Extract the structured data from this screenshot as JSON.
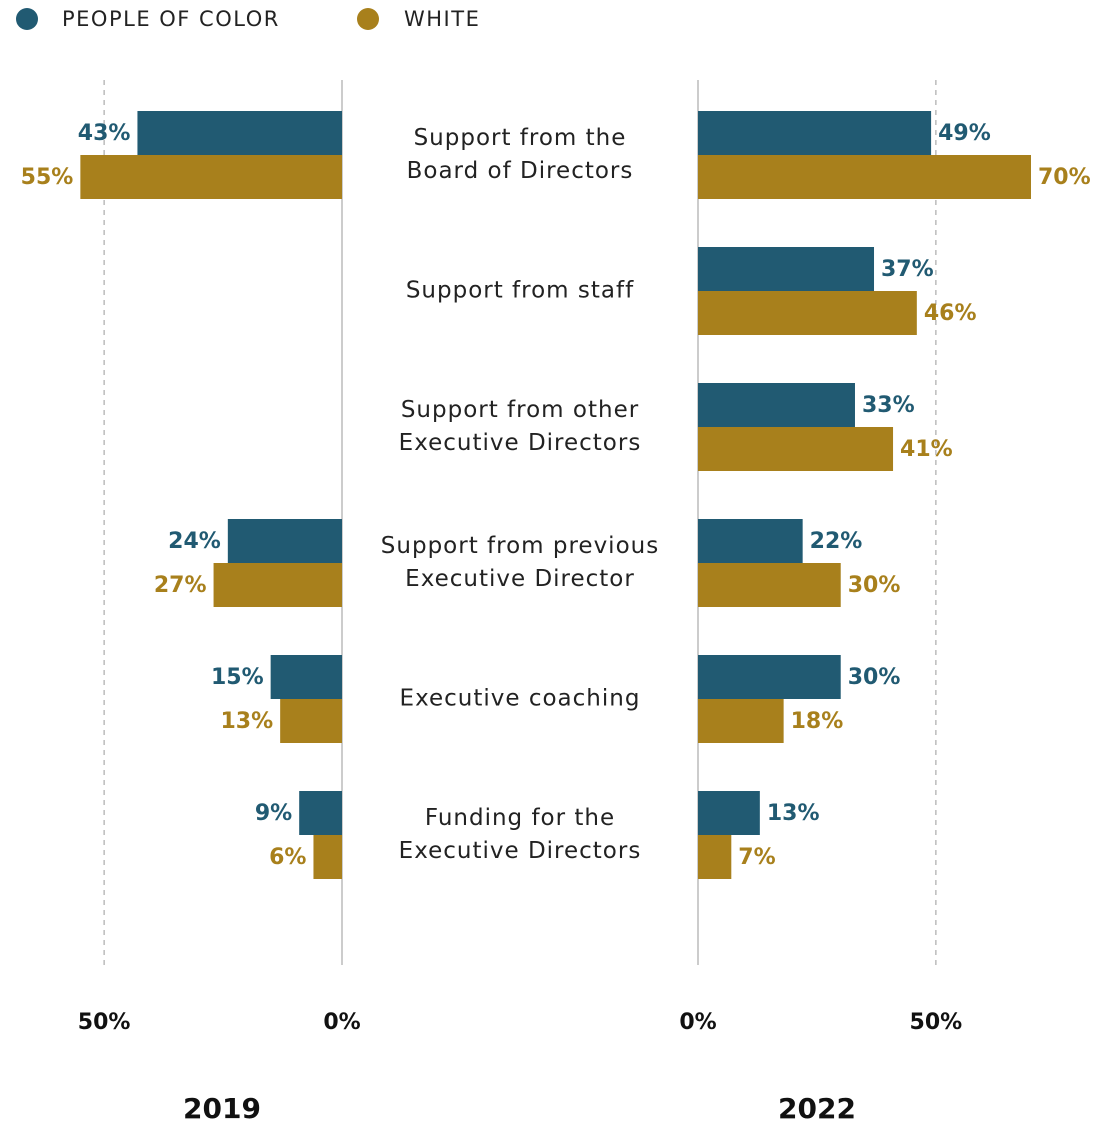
{
  "chart_data": {
    "type": "bar",
    "categories": [
      [
        "Support from the",
        "Board of Directors"
      ],
      [
        "Support from staff"
      ],
      [
        "Support from other",
        "Executive Directors"
      ],
      [
        "Support from previous",
        "Executive Director"
      ],
      [
        "Executive coaching"
      ],
      [
        "Funding for the",
        "Executive Directors"
      ]
    ],
    "series": [
      {
        "name": "PEOPLE OF COLOR",
        "color": "#215a72",
        "values": [
          [
            43,
            null,
            null,
            24,
            15,
            9
          ],
          [
            49,
            37,
            33,
            22,
            30,
            13
          ]
        ],
        "value_labels": [
          [
            "43%",
            null,
            null,
            "24%",
            "15%",
            "9%"
          ],
          [
            "49%",
            "37%",
            "33%",
            "22%",
            "30%",
            "13%"
          ]
        ]
      },
      {
        "name": "WHITE",
        "color": "#a8801c",
        "values": [
          [
            55,
            null,
            null,
            27,
            13,
            6
          ],
          [
            70,
            46,
            41,
            30,
            18,
            7
          ]
        ],
        "value_labels": [
          [
            "55%",
            null,
            null,
            "27%",
            "13%",
            "6%"
          ],
          [
            "70%",
            "46%",
            "41%",
            "30%",
            "18%",
            "7%"
          ]
        ]
      }
    ],
    "panels": [
      {
        "title": "2019",
        "xlim": [
          0,
          70
        ],
        "xticks": [
          {
            "value": 0,
            "label": "0%"
          },
          {
            "value": 50,
            "label": "50%"
          }
        ]
      },
      {
        "title": "2022",
        "xlim": [
          0,
          70
        ],
        "xticks": [
          {
            "value": 0,
            "label": "0%"
          },
          {
            "value": 50,
            "label": "50%"
          }
        ]
      }
    ],
    "grid": true
  }
}
